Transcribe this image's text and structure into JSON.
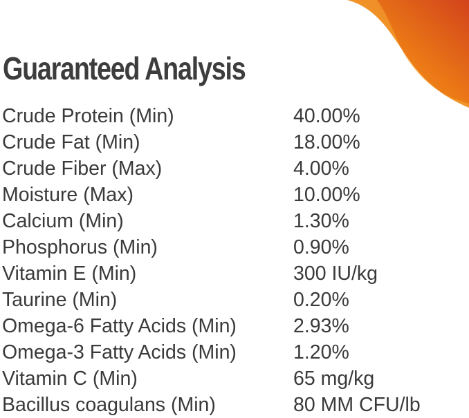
{
  "title": "Guaranteed Analysis",
  "accent_colors": {
    "swoosh_light": "#f39a1a",
    "swoosh_dark": "#d4461a"
  },
  "rows": [
    {
      "name": "Crude Protein (Min)",
      "value": "40.00%"
    },
    {
      "name": "Crude Fat (Min)",
      "value": "18.00%"
    },
    {
      "name": "Crude Fiber (Max)",
      "value": "4.00%"
    },
    {
      "name": "Moisture (Max)",
      "value": "10.00%"
    },
    {
      "name": "Calcium (Min)",
      "value": "1.30%"
    },
    {
      "name": "Phosphorus (Min)",
      "value": "0.90%"
    },
    {
      "name": "Vitamin E (Min)",
      "value": "300 IU/kg"
    },
    {
      "name": "Taurine (Min)",
      "value": "0.20%"
    },
    {
      "name": "Omega-6 Fatty Acids (Min)",
      "value": "2.93%"
    },
    {
      "name": "Omega-3 Fatty Acids (Min)",
      "value": "1.20%"
    },
    {
      "name": "Vitamin C (Min)",
      "value": "65 mg/kg"
    },
    {
      "name": "Bacillus coagulans (Min)",
      "value": "80 MM CFU/lb"
    }
  ]
}
